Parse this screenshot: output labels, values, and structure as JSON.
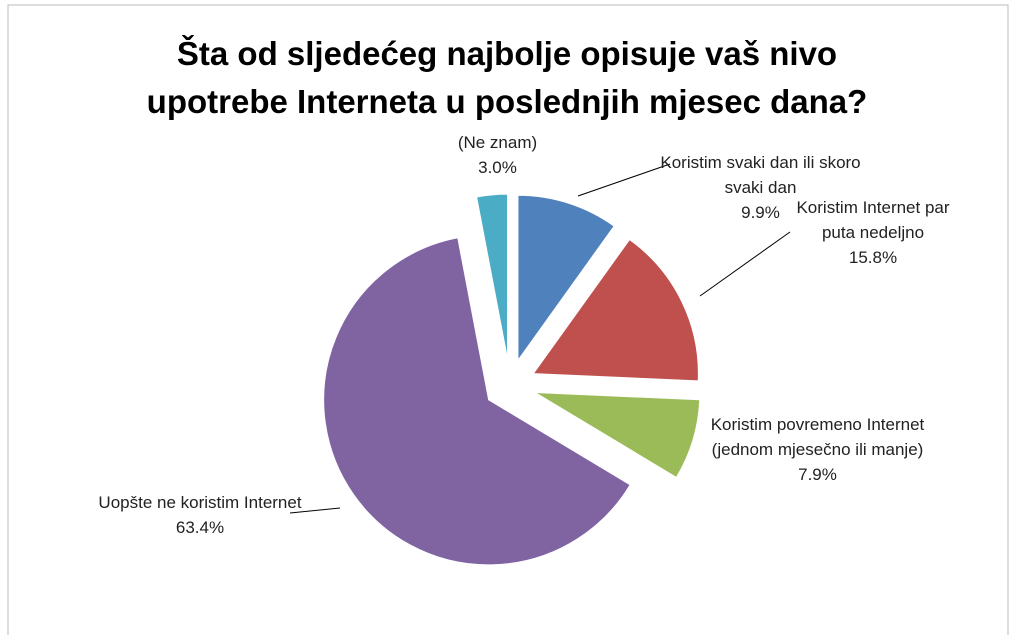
{
  "chart_data": {
    "type": "pie",
    "title": "Šta od sljedećeg najbolje opisuje vaš nivo upotrebe Interneta u poslednjih mjesec dana?",
    "categories": [
      "Koristim svaki dan ili skoro svaki dan",
      "Koristim Internet par puta nedeljno",
      "Koristim povremeno Internet (jednom mjesečno ili manje)",
      "Uopšte ne koristim Internet",
      "(Ne znam)"
    ],
    "values": [
      9.9,
      15.8,
      7.9,
      63.4,
      3.0
    ],
    "value_labels": [
      "9.9%",
      "15.8%",
      "7.9%",
      "63.4%",
      "3.0%"
    ],
    "colors": [
      "#4f81bd",
      "#c0504d",
      "#9bbb59",
      "#8064a2",
      "#4bacc6"
    ]
  }
}
